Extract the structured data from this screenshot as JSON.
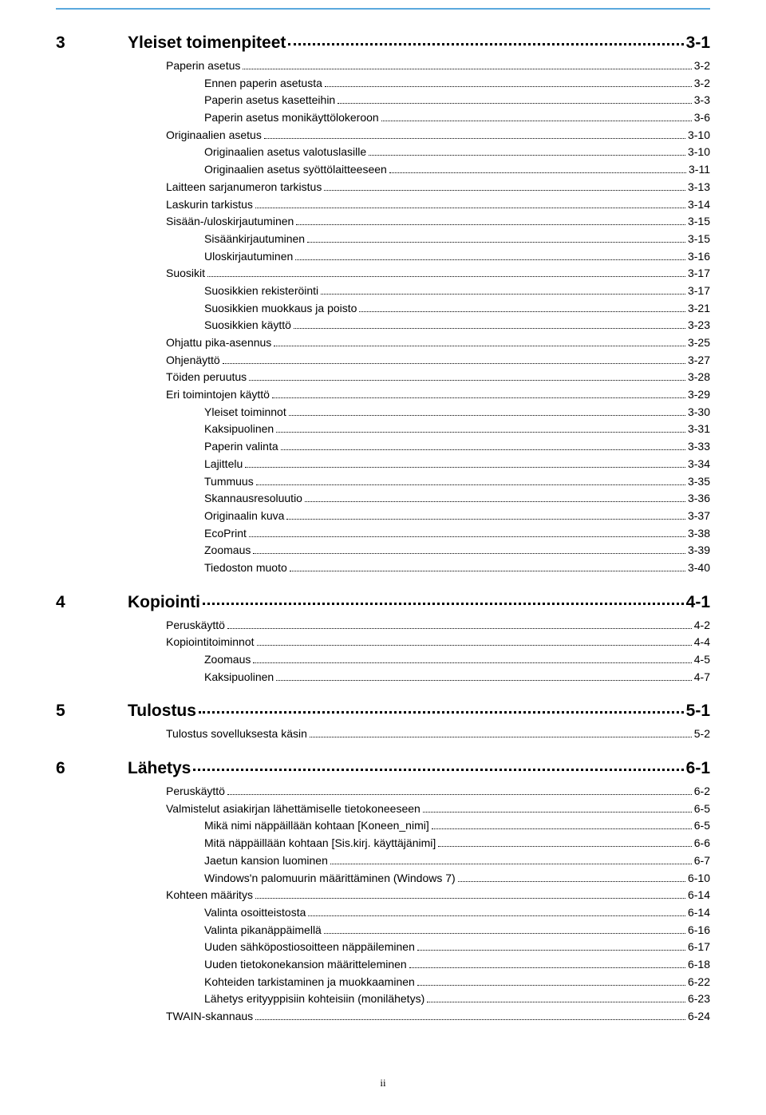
{
  "colors": {
    "rule": "#5aa9dd",
    "text": "#000000",
    "background": "#ffffff"
  },
  "typography": {
    "chapter_fontsize": 21,
    "chapter_fontweight": "bold",
    "entry_fontsize": 14
  },
  "sections": [
    {
      "num": "3",
      "title": "Yleiset toimenpiteet",
      "page": "3-1",
      "entries": [
        {
          "indent": 1,
          "title": "Paperin asetus",
          "page": "3-2"
        },
        {
          "indent": 2,
          "title": "Ennen paperin asetusta",
          "page": "3-2"
        },
        {
          "indent": 2,
          "title": "Paperin asetus kasetteihin",
          "page": "3-3"
        },
        {
          "indent": 2,
          "title": "Paperin asetus monikäyttölokeroon",
          "page": "3-6"
        },
        {
          "indent": 1,
          "title": "Originaalien asetus",
          "page": "3-10"
        },
        {
          "indent": 2,
          "title": "Originaalien asetus valotuslasille",
          "page": "3-10"
        },
        {
          "indent": 2,
          "title": "Originaalien asetus syöttölaitteeseen",
          "page": "3-11"
        },
        {
          "indent": 1,
          "title": "Laitteen sarjanumeron tarkistus",
          "page": "3-13"
        },
        {
          "indent": 1,
          "title": "Laskurin tarkistus",
          "page": "3-14"
        },
        {
          "indent": 1,
          "title": "Sisään-/uloskirjautuminen",
          "page": "3-15"
        },
        {
          "indent": 2,
          "title": "Sisäänkirjautuminen",
          "page": "3-15"
        },
        {
          "indent": 2,
          "title": "Uloskirjautuminen",
          "page": "3-16"
        },
        {
          "indent": 1,
          "title": "Suosikit",
          "page": "3-17"
        },
        {
          "indent": 2,
          "title": "Suosikkien rekisteröinti",
          "page": "3-17"
        },
        {
          "indent": 2,
          "title": "Suosikkien muokkaus ja poisto",
          "page": "3-21"
        },
        {
          "indent": 2,
          "title": "Suosikkien käyttö",
          "page": "3-23"
        },
        {
          "indent": 1,
          "title": "Ohjattu pika-asennus",
          "page": "3-25"
        },
        {
          "indent": 1,
          "title": "Ohjenäyttö",
          "page": "3-27"
        },
        {
          "indent": 1,
          "title": "Töiden peruutus",
          "page": "3-28"
        },
        {
          "indent": 1,
          "title": "Eri toimintojen käyttö",
          "page": "3-29"
        },
        {
          "indent": 2,
          "title": "Yleiset toiminnot",
          "page": "3-30"
        },
        {
          "indent": 2,
          "title": "Kaksipuolinen",
          "page": "3-31"
        },
        {
          "indent": 2,
          "title": "Paperin valinta",
          "page": "3-33"
        },
        {
          "indent": 2,
          "title": "Lajittelu",
          "page": "3-34"
        },
        {
          "indent": 2,
          "title": "Tummuus",
          "page": "3-35"
        },
        {
          "indent": 2,
          "title": "Skannausresoluutio",
          "page": "3-36"
        },
        {
          "indent": 2,
          "title": "Originaalin kuva",
          "page": "3-37"
        },
        {
          "indent": 2,
          "title": "EcoPrint",
          "page": "3-38"
        },
        {
          "indent": 2,
          "title": "Zoomaus",
          "page": "3-39"
        },
        {
          "indent": 2,
          "title": "Tiedoston muoto",
          "page": "3-40"
        }
      ]
    },
    {
      "num": "4",
      "title": "Kopiointi",
      "page": "4-1",
      "entries": [
        {
          "indent": 1,
          "title": "Peruskäyttö",
          "page": "4-2"
        },
        {
          "indent": 1,
          "title": "Kopiointitoiminnot",
          "page": "4-4"
        },
        {
          "indent": 2,
          "title": "Zoomaus",
          "page": "4-5"
        },
        {
          "indent": 2,
          "title": "Kaksipuolinen",
          "page": "4-7"
        }
      ]
    },
    {
      "num": "5",
      "title": "Tulostus",
      "page": "5-1",
      "entries": [
        {
          "indent": 1,
          "title": "Tulostus sovelluksesta käsin",
          "page": "5-2"
        }
      ]
    },
    {
      "num": "6",
      "title": "Lähetys",
      "page": "6-1",
      "entries": [
        {
          "indent": 1,
          "title": "Peruskäyttö",
          "page": "6-2"
        },
        {
          "indent": 1,
          "title": "Valmistelut asiakirjan lähettämiselle tietokoneeseen",
          "page": "6-5"
        },
        {
          "indent": 2,
          "title": "Mikä nimi näppäillään kohtaan [Koneen_nimi]",
          "page": "6-5"
        },
        {
          "indent": 2,
          "title": "Mitä näppäillään kohtaan [Sis.kirj. käyttäjänimi]",
          "page": "6-6"
        },
        {
          "indent": 2,
          "title": "Jaetun kansion luominen",
          "page": "6-7"
        },
        {
          "indent": 2,
          "title": "Windows'n palomuurin määrittäminen (Windows 7)",
          "page": "6-10"
        },
        {
          "indent": 1,
          "title": "Kohteen määritys",
          "page": "6-14"
        },
        {
          "indent": 2,
          "title": "Valinta osoitteistosta",
          "page": "6-14"
        },
        {
          "indent": 2,
          "title": "Valinta pikanäppäimellä",
          "page": "6-16"
        },
        {
          "indent": 2,
          "title": "Uuden sähköpostiosoitteen näppäileminen",
          "page": "6-17"
        },
        {
          "indent": 2,
          "title": "Uuden tietokonekansion määritteleminen",
          "page": "6-18"
        },
        {
          "indent": 2,
          "title": "Kohteiden tarkistaminen ja muokkaaminen",
          "page": "6-22"
        },
        {
          "indent": 2,
          "title": "Lähetys erityyppisiin kohteisiin (monilähetys)",
          "page": "6-23"
        },
        {
          "indent": 1,
          "title": "TWAIN-skannaus",
          "page": "6-24"
        }
      ]
    }
  ],
  "footer": "ii"
}
